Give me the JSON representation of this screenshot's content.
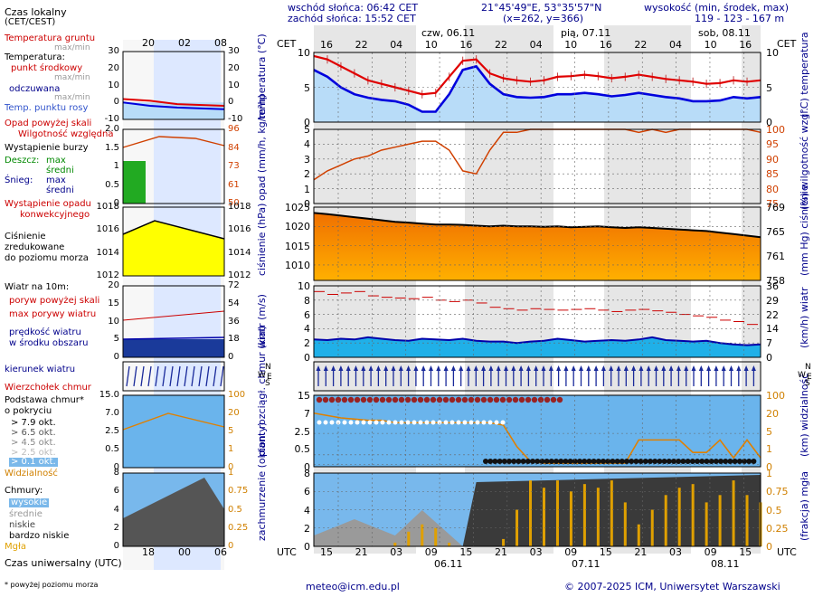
{
  "header": {
    "sunrise": "wschód słońca: 06:42 CET",
    "sunset": "zachód słońca: 15:52 CET",
    "coords": "21°45'49\"E, 53°35'57\"N",
    "grid": "(x=262, y=366)",
    "elevation_title": "wysokość (min, środek, max)",
    "elevation_values": "119 - 123 - 167 m"
  },
  "time": {
    "cet_label": "CET",
    "utc_label": "UTC",
    "left_cet_ticks": [
      "20",
      "02",
      "08"
    ],
    "left_utc_ticks": [
      "18",
      "00",
      "06"
    ],
    "top_ticks": [
      "16",
      "22",
      "04",
      "10",
      "16",
      "22",
      "04",
      "10",
      "16",
      "22",
      "04",
      "10",
      "16"
    ],
    "bottom_ticks": [
      "15",
      "21",
      "03",
      "09",
      "15",
      "21",
      "03",
      "09",
      "15",
      "21",
      "03",
      "09",
      "15"
    ],
    "top_days": [
      "czw, 06.11",
      "pią, 07.11",
      "sob, 08.11"
    ],
    "bottom_days": [
      "06.11",
      "07.11",
      "08.11"
    ]
  },
  "legend": {
    "local_time": "Czas lokalny",
    "local_time_sub": "(CET/CEST)",
    "ground_temp": "Temperatura gruntu",
    "ground_temp_sub": "max/min",
    "temperature": "Temperatura:",
    "mid_point": "punkt środkowy",
    "max_min_1": "max/min",
    "felt": "odczuwana",
    "max_min_2": "max/min",
    "dew_point": "Temp. punktu rosy",
    "precip_above": "Opad powyżej skali",
    "humidity": "Wilgotność względna",
    "storm": "Wystąpienie burzy",
    "rain": "Deszcz:",
    "rain_max": "max",
    "rain_mid": "średni",
    "snow": "Śnieg:",
    "snow_max": "max",
    "snow_mid": "średni",
    "precip_occurrence": "Wystąpienie opadu",
    "precip_occurrence_2": "konwekcyjnego",
    "pressure_1": "Ciśnienie",
    "pressure_2": "zredukowane",
    "pressure_3": "do poziomu morza",
    "wind_title": "Wiatr na 10m:",
    "gust_above": "poryw powyżej skali",
    "gust_max": "max porywy wiatru",
    "wind_speed": "prędkość wiatru",
    "wind_speed_2": "w środku obszaru",
    "wind_dir": "kierunek wiatru",
    "cloud_top": "Wierzchołek chmur",
    "cloud_base": "Podstawa chmur*",
    "cloud_base_2": "o pokryciu",
    "okt1": "> 7.9 okt.",
    "okt2": "> 6.5 okt.",
    "okt3": "> 4.5 okt.",
    "okt4": "> 2.5 okt.",
    "okt5": "> 0.1 okt.",
    "visibility": "Widzialność",
    "clouds": "Chmury:",
    "cl_high": "wysokie",
    "cl_mid": "średnie",
    "cl_low": "niskie",
    "cl_vlow": "bardzo niskie",
    "fog": "Mgła",
    "utc_caption": "Czas uniwersalny (UTC)",
    "footnote": "* powyżej poziomu morza"
  },
  "axis_titles": {
    "temp_left": "temperatura (°C)",
    "temp_right": "(°C) temperatura",
    "precip_left": "opad (mm/h, kg/m²h)",
    "precip_right": "(%) wilgotność wzgl.",
    "press_left": "ciśnienie (hPa)",
    "press_right": "(mm Hg) ciśnienie",
    "wind_left": "wiatr (m/s)",
    "wind_right": "(km/h) wiatr",
    "cloud_left": "pion. rozciągł. chmur (km)",
    "cloud_right": "(km) widzialność",
    "cover_left": "zachmurzenie (oktanty)",
    "cover_right": "(frakcja) mgła",
    "compass_n": "N",
    "compass_s": "S",
    "compass_e": "E",
    "compass_w": "W"
  },
  "footer": {
    "email": "meteo@icm.edu.pl",
    "copyright": "© 2007-2025 ICM, Uniwersytet Warszawski"
  },
  "colors": {
    "temp_mid": "#e00000",
    "temp_felt": "#0000dd",
    "humidity": "#d04000",
    "pressure_fill": "#ff9000",
    "pressure_line": "#000000",
    "wind": "#0000aa",
    "gust": "#cc0000",
    "visibility": "#e08000",
    "fog": "#e0a000"
  },
  "chart_data": [
    {
      "type": "line",
      "title": "temperatura",
      "ylabel": "temperatura (°C)",
      "ylim": [
        0,
        10
      ],
      "yticks": [
        0,
        5,
        10
      ],
      "series": [
        {
          "name": "punkt środkowy",
          "values": [
            9.5,
            9.0,
            8.0,
            7.0,
            6.0,
            5.5,
            5.0,
            4.5,
            4.0,
            4.2,
            6.5,
            8.8,
            9.0,
            7.0,
            6.3,
            6.0,
            5.8,
            6.0,
            6.5,
            6.6,
            6.8,
            6.6,
            6.3,
            6.5,
            6.8,
            6.5,
            6.2,
            6.0,
            5.8,
            5.5,
            5.6,
            6.0,
            5.8,
            6.0
          ]
        },
        {
          "name": "odczuwana",
          "values": [
            7.5,
            6.5,
            5.0,
            4.0,
            3.5,
            3.2,
            3.0,
            2.5,
            1.5,
            1.5,
            4.0,
            7.5,
            8.0,
            5.5,
            4.0,
            3.6,
            3.5,
            3.6,
            4.0,
            4.0,
            4.2,
            4.0,
            3.7,
            3.9,
            4.2,
            3.9,
            3.6,
            3.4,
            3.0,
            3.0,
            3.1,
            3.6,
            3.4,
            3.6
          ]
        }
      ],
      "left_panel_ticks": [
        -10,
        0,
        10,
        20,
        30
      ]
    },
    {
      "type": "line",
      "title": "opad / wilgotność",
      "ylabel": "opad (mm/h, kg/m²h)",
      "ylim": [
        0,
        5
      ],
      "yticks": [
        0,
        1,
        2,
        3,
        4,
        5
      ],
      "y2ticks": [
        75,
        80,
        85,
        90,
        95,
        100
      ],
      "left_panel_ticks": [
        "0",
        "0.5",
        "1",
        "1.5",
        "2.0"
      ],
      "left_panel_right_ticks": [
        "50",
        "61",
        "73",
        "84",
        "96"
      ],
      "series": [
        {
          "name": "wilgotność względna (%)",
          "values": [
            83,
            86,
            88,
            90,
            91,
            93,
            94,
            95,
            96,
            96,
            93,
            86,
            85,
            93,
            99,
            99,
            100,
            100,
            100,
            100,
            100,
            100,
            100,
            100,
            99,
            100,
            99,
            100,
            100,
            100,
            100,
            100,
            100,
            99
          ]
        }
      ]
    },
    {
      "type": "area",
      "title": "ciśnienie",
      "ylabel": "ciśnienie (hPa)",
      "ylim": [
        1006,
        1025
      ],
      "yticks": [
        1010,
        1015,
        1020,
        1025
      ],
      "y2ticks": [
        758,
        761,
        765,
        769
      ],
      "left_panel_ticks": [
        1012,
        1014,
        1016,
        1018
      ],
      "series": [
        {
          "name": "ciśnienie",
          "values": [
            1023.5,
            1023.2,
            1022.8,
            1022.4,
            1022.0,
            1021.6,
            1021.2,
            1021.0,
            1020.7,
            1020.5,
            1020.5,
            1020.4,
            1020.2,
            1020.0,
            1020.2,
            1020.0,
            1020.0,
            1019.9,
            1020.0,
            1019.8,
            1019.9,
            1020.0,
            1019.8,
            1019.6,
            1019.8,
            1019.6,
            1019.4,
            1019.2,
            1019.0,
            1018.8,
            1018.4,
            1018.0,
            1017.6,
            1017.2
          ]
        }
      ]
    },
    {
      "type": "line",
      "title": "wiatr",
      "ylabel": "wiatr (m/s)",
      "ylim": [
        0,
        10
      ],
      "yticks": [
        0,
        2,
        4,
        6,
        8,
        10
      ],
      "y2ticks": [
        0,
        7,
        14,
        22,
        29,
        36
      ],
      "left_panel_ticks": [
        0,
        5,
        10,
        15,
        20
      ],
      "left_panel_right_ticks": [
        0,
        18,
        36,
        54,
        72
      ],
      "series": [
        {
          "name": "prędkość wiatru",
          "values": [
            2.5,
            2.4,
            2.6,
            2.5,
            2.8,
            2.6,
            2.4,
            2.3,
            2.6,
            2.5,
            2.4,
            2.6,
            2.3,
            2.2,
            2.2,
            2.0,
            2.2,
            2.3,
            2.6,
            2.4,
            2.2,
            2.3,
            2.4,
            2.3,
            2.5,
            2.8,
            2.4,
            2.3,
            2.2,
            2.3,
            2.0,
            1.8,
            1.7,
            1.8
          ]
        },
        {
          "name": "max porywy wiatru",
          "values": [
            9.2,
            8.8,
            9.0,
            9.2,
            8.6,
            8.4,
            8.3,
            8.2,
            8.4,
            8.0,
            7.8,
            8.0,
            7.6,
            7.0,
            6.8,
            6.6,
            6.8,
            6.7,
            6.6,
            6.7,
            6.8,
            6.6,
            6.4,
            6.6,
            6.7,
            6.5,
            6.3,
            6.0,
            5.8,
            5.6,
            5.2,
            5.0,
            4.6,
            4.6
          ]
        }
      ]
    },
    {
      "type": "line",
      "title": "pion. rozciągł. chmur / widzialność",
      "ylabel": "pion. rozciągł. chmur (km)",
      "ylim": [
        0,
        15
      ],
      "yticks": [
        0,
        0.5,
        2.5,
        7.0,
        15.0
      ],
      "y2ticks": [
        0,
        1,
        5,
        20,
        100
      ],
      "left_panel_ticks": [
        "0",
        "0.5",
        "2.5",
        "7.0",
        "15.0"
      ],
      "left_panel_right_ticks": [
        "0",
        "1",
        "5",
        "20",
        "100"
      ],
      "series": [
        {
          "name": "widzialność (km)",
          "values": [
            20,
            18,
            16,
            15,
            14,
            14,
            12,
            12,
            12,
            12,
            12,
            12,
            12,
            12,
            10,
            1.5,
            0.3,
            0.2,
            0.2,
            0.2,
            0.2,
            0.2,
            0.2,
            0.2,
            3,
            3,
            3,
            3,
            0.8,
            0.8,
            3,
            0.5,
            3,
            0.5
          ]
        }
      ]
    },
    {
      "type": "bar",
      "title": "zachmurzenie / mgła",
      "ylabel": "zachmurzenie (oktanty)",
      "ylim": [
        0,
        8
      ],
      "yticks": [
        0,
        2,
        4,
        6,
        8
      ],
      "y2ticks": [
        0,
        0.25,
        0.5,
        0.75,
        1
      ],
      "left_panel_ticks": [
        0,
        2,
        4,
        6,
        8
      ],
      "left_panel_right_ticks": [
        "0",
        "0.25",
        "0.5",
        "0.75",
        "1"
      ],
      "series": [
        {
          "name": "mgła (frakcja)",
          "values": [
            0,
            0,
            0,
            0,
            0,
            0,
            0.05,
            0.2,
            0.3,
            0.25,
            0.05,
            0,
            0,
            0,
            0.1,
            0.5,
            0.9,
            0.8,
            0.9,
            0.75,
            0.85,
            0.8,
            0.9,
            0.6,
            0.3,
            0.5,
            0.7,
            0.8,
            0.85,
            0.6,
            0.7,
            0.9,
            0.7,
            0.6
          ]
        }
      ]
    }
  ]
}
